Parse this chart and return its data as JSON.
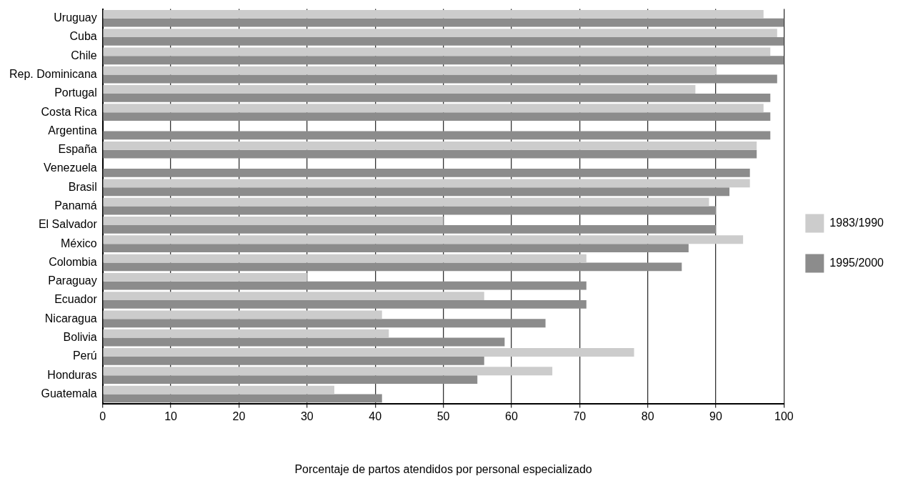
{
  "chart_data": {
    "type": "bar",
    "orientation": "horizontal",
    "xlabel": "Porcentaje de partos atendidos por personal especializado",
    "categories": [
      "Uruguay",
      "Cuba",
      "Chile",
      "Rep. Dominicana",
      "Portugal",
      "Costa Rica",
      "Argentina",
      "España",
      "Venezuela",
      "Brasil",
      "Panamá",
      "El Salvador",
      "México",
      "Colombia",
      "Paraguay",
      "Ecuador",
      "Nicaragua",
      "Bolivia",
      "Perú",
      "Honduras",
      "Guatemala"
    ],
    "series": [
      {
        "name": "1983/1990",
        "color": "#cccccc",
        "values": [
          97,
          99,
          98,
          90,
          87,
          97,
          null,
          96,
          null,
          95,
          89,
          50,
          94,
          71,
          30,
          56,
          41,
          42,
          78,
          66,
          34
        ]
      },
      {
        "name": "1995/2000",
        "color": "#8c8c8c",
        "values": [
          100,
          100,
          100,
          99,
          98,
          98,
          98,
          96,
          95,
          92,
          90,
          90,
          86,
          85,
          71,
          71,
          65,
          59,
          56,
          55,
          41
        ]
      }
    ],
    "xlim": [
      0,
      100
    ],
    "xticks": [
      0,
      10,
      20,
      30,
      40,
      50,
      60,
      70,
      80,
      90,
      100
    ],
    "grid": "x",
    "legend": "right"
  }
}
